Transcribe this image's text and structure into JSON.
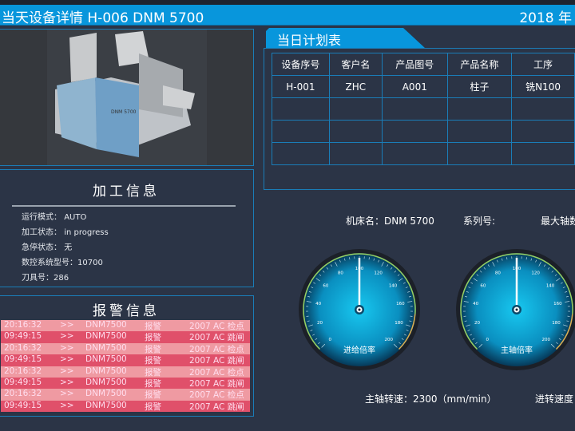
{
  "header": {
    "title": "当天设备详情  H-006   DNM 5700",
    "date": "2018 年"
  },
  "processing": {
    "title": "加工信息",
    "rows": [
      {
        "label": "运行模式：",
        "value": "AUTO"
      },
      {
        "label": "加工状态：",
        "value": "in progress"
      },
      {
        "label": "急停状态：",
        "value": "无"
      },
      {
        "label": "数控系统型号：",
        "value": "10700"
      },
      {
        "label": "刀具号：",
        "value": "286"
      }
    ]
  },
  "alarms": {
    "title": "报警信息",
    "rows": [
      {
        "time": "20:16:32",
        "arrow": ">>",
        "model": "DNM7500",
        "type": "报警",
        "code": "2007  AC 检点"
      },
      {
        "time": "09:49:15",
        "arrow": ">>",
        "model": "DNM7500",
        "type": "报警",
        "code": "2007  AC 跳闸"
      },
      {
        "time": "20:16:32",
        "arrow": ">>",
        "model": "DNM7500",
        "type": "报警",
        "code": "2007  AC 检点"
      },
      {
        "time": "09:49:15",
        "arrow": ">>",
        "model": "DNM7500",
        "type": "报警",
        "code": "2007  AC 跳闸"
      },
      {
        "time": "20:16:32",
        "arrow": ">>",
        "model": "DNM7500",
        "type": "报警",
        "code": "2007  AC 检点"
      },
      {
        "time": "09:49:15",
        "arrow": ">>",
        "model": "DNM7500",
        "type": "报警",
        "code": "2007  AC 跳闸"
      },
      {
        "time": "20:16:32",
        "arrow": ">>",
        "model": "DNM7500",
        "type": "报警",
        "code": "2007  AC 检点"
      },
      {
        "time": "09:49:15",
        "arrow": ">>",
        "model": "DNM7500",
        "type": "报警",
        "code": "2007  AC 跳闸"
      }
    ],
    "colors": {
      "light": "#ef9aa2",
      "dark": "#e0506a"
    }
  },
  "plan": {
    "title": "当日计划表",
    "headers": [
      "设备序号",
      "客户名",
      "产品图号",
      "产品名称",
      "工序"
    ],
    "rows": [
      [
        "H-001",
        "ZHC",
        "A001",
        "柱子",
        "铣N100"
      ],
      [
        "",
        "",
        "",
        "",
        ""
      ],
      [
        "",
        "",
        "",
        "",
        ""
      ],
      [
        "",
        "",
        "",
        "",
        ""
      ]
    ]
  },
  "machine": {
    "name_label": "机床名：",
    "name": "DNM 5700",
    "series_label": "系列号:",
    "max_label": "最大轴数"
  },
  "gauges": [
    {
      "label": "进给倍率",
      "value": 100,
      "min": 0,
      "max": 200
    },
    {
      "label": "主轴倍率",
      "value": 100,
      "min": 0,
      "max": 200
    }
  ],
  "bottom": {
    "spindle": "主轴转速：2300（mm/min）",
    "feed": "进转速度"
  }
}
